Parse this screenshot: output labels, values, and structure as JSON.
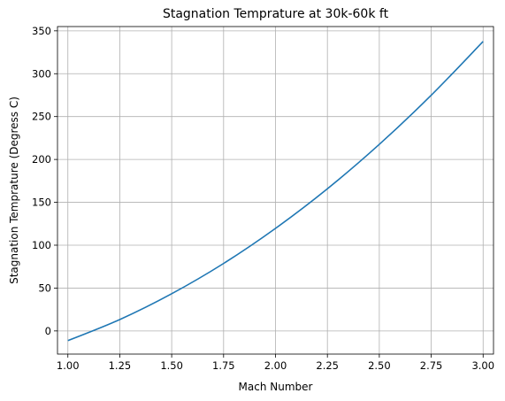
{
  "chart_data": {
    "type": "line",
    "title": "Stagnation Temprature at 30k-60k ft",
    "xlabel": "Mach Number",
    "ylabel": "Stagnation Temprature (Degress C)",
    "xlim": [
      0.95,
      3.05
    ],
    "ylim": [
      -27,
      355
    ],
    "xticks": [
      1.0,
      1.25,
      1.5,
      1.75,
      2.0,
      2.25,
      2.5,
      2.75,
      3.0
    ],
    "xtick_labels": [
      "1.00",
      "1.25",
      "1.50",
      "1.75",
      "2.00",
      "2.25",
      "2.50",
      "2.75",
      "3.00"
    ],
    "yticks": [
      0,
      50,
      100,
      150,
      200,
      250,
      300,
      350
    ],
    "ytick_labels": [
      "0",
      "50",
      "100",
      "150",
      "200",
      "250",
      "300",
      "350"
    ],
    "grid": true,
    "series": [
      {
        "color": "#1f77b4",
        "x": [
          1.0,
          1.25,
          1.5,
          1.75,
          2.0,
          2.25,
          2.5,
          2.75,
          3.0
        ],
        "y": [
          -11.3,
          13.3,
          43.4,
          78.7,
          119.6,
          165.8,
          217.6,
          274.9,
          337.6
        ]
      }
    ]
  }
}
